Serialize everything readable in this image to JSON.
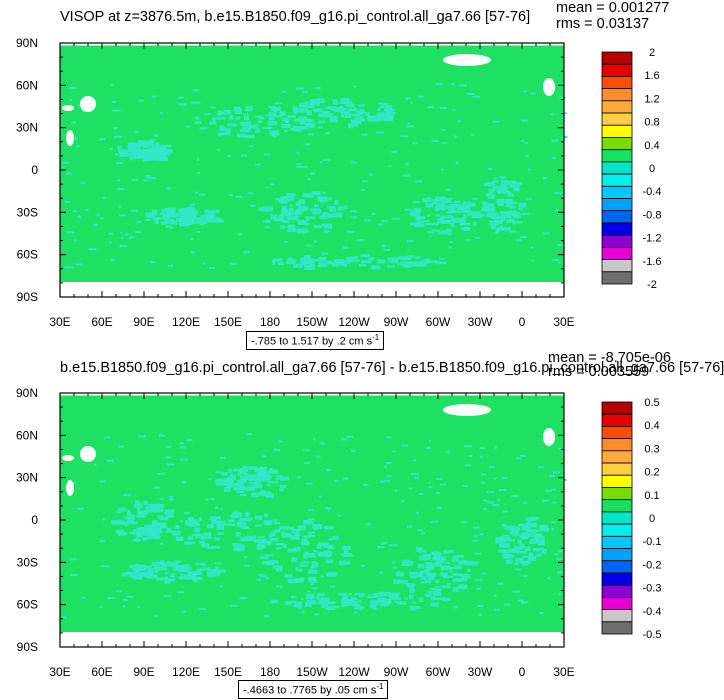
{
  "chart_data": [
    {
      "type": "heatmap",
      "title": "VISOP at z=3876.5m, b.e15.B1850.f09_g16.pi_control.all_ga7.66 [57-76]",
      "stat_mean": "mean = 0.001277",
      "stat_rms": "rms = 0.03137",
      "x_ticks": [
        "30E",
        "60E",
        "90E",
        "120E",
        "150E",
        "180",
        "150W",
        "120W",
        "90W",
        "60W",
        "30W",
        "0",
        "30E"
      ],
      "y_ticks": [
        "90N",
        "60N",
        "30N",
        "0",
        "30S",
        "60S",
        "90S"
      ],
      "range_text": "-.785 to 1.517 by .2",
      "range_units": "cm s",
      "range_units_exp": "-1",
      "colorbar_labels": [
        "2",
        "1.6",
        "1.2",
        "0.8",
        "0.4",
        "0",
        "-0.4",
        "-0.8",
        "-1.2",
        "-1.6",
        "-2"
      ],
      "colorbar_colors": [
        "#b40000",
        "#e60000",
        "#ff4c00",
        "#ff8c28",
        "#ffaa3c",
        "#ffcc46",
        "#ffff00",
        "#78dc00",
        "#18e060",
        "#00e6c8",
        "#00f0f0",
        "#00c8f8",
        "#00a0ff",
        "#0064f0",
        "#0000e6",
        "#8c00d2",
        "#e600d2",
        "#c8c8c8",
        "#6e6e6e"
      ],
      "background_value_color": "#1ee164",
      "feature_color": "#32e6c8"
    },
    {
      "type": "heatmap",
      "title": "b.e15.B1850.f09_g16.pi_control.all_ga7.66 [57-76] - b.e15.B1850.f09_g16.pi_control.all_ga7.66 [57-76]",
      "stat_mean": "mean = -8.705e-06",
      "stat_rms": "rms = 0.003559",
      "x_ticks": [
        "30E",
        "60E",
        "90E",
        "120E",
        "150E",
        "180",
        "150W",
        "120W",
        "90W",
        "60W",
        "30W",
        "0",
        "30E"
      ],
      "y_ticks": [
        "90N",
        "60N",
        "30N",
        "0",
        "30S",
        "60S",
        "90S"
      ],
      "range_text": "-.4663 to .7765 by .05",
      "range_units": "cm s",
      "range_units_exp": "-1",
      "colorbar_labels": [
        "0.5",
        "0.4",
        "0.3",
        "0.2",
        "0.1",
        "0",
        "-0.1",
        "-0.2",
        "-0.3",
        "-0.4",
        "-0.5"
      ],
      "colorbar_colors": [
        "#b40000",
        "#e60000",
        "#ff4c00",
        "#ff8c28",
        "#ffaa3c",
        "#ffcc46",
        "#ffff00",
        "#78dc00",
        "#18e060",
        "#00e6c8",
        "#00f0f0",
        "#00c8f8",
        "#00a0ff",
        "#0064f0",
        "#0000e6",
        "#8c00d2",
        "#e600d2",
        "#c8c8c8",
        "#6e6e6e"
      ],
      "background_value_color": "#1ee164",
      "feature_color": "#32e6c8"
    }
  ]
}
